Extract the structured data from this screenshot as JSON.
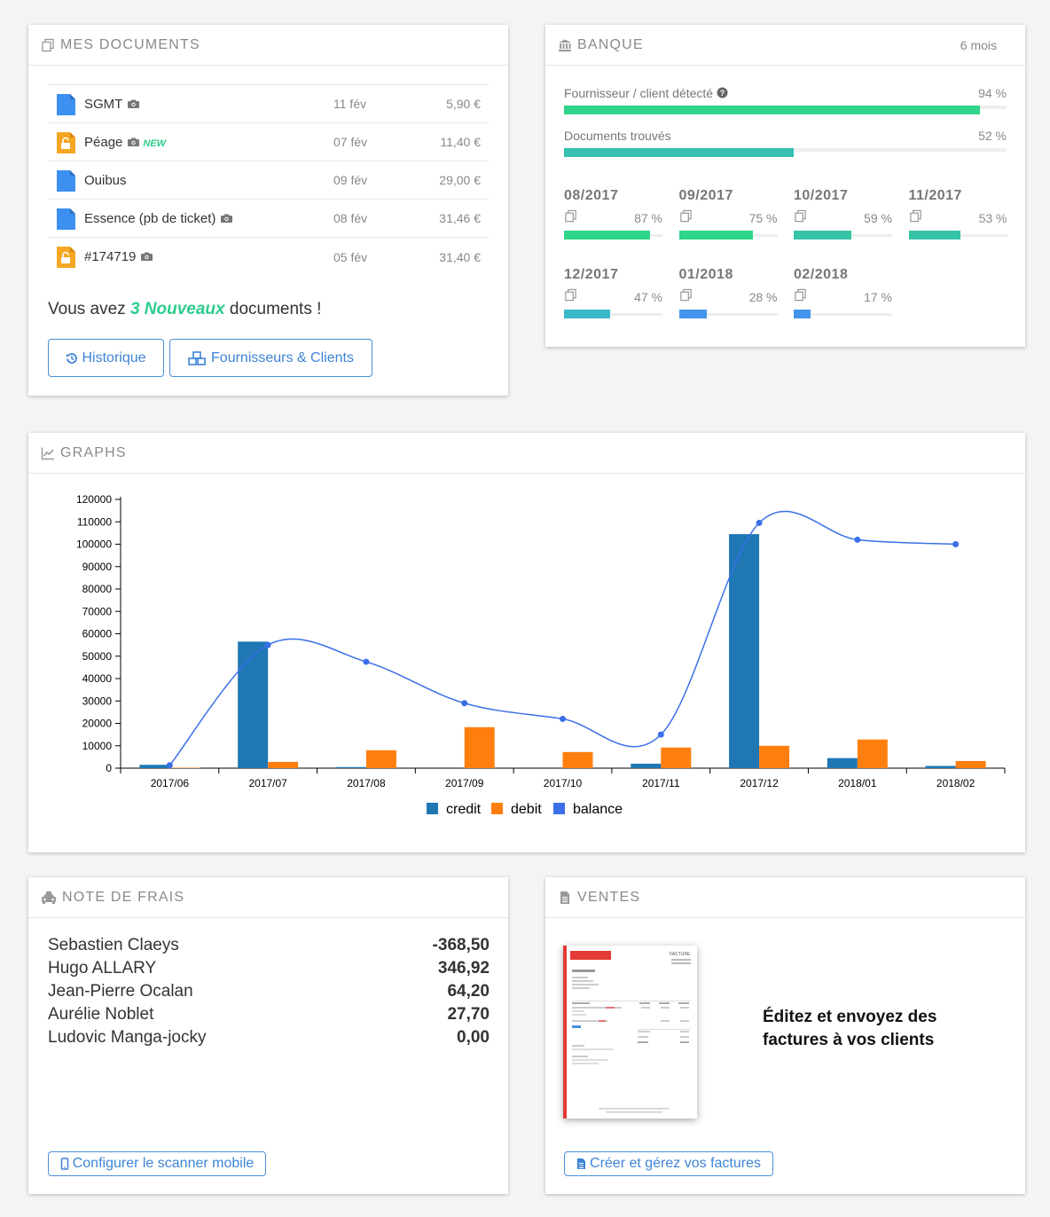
{
  "documents": {
    "title": "MES DOCUMENTS",
    "rows": [
      {
        "name": "SGMT",
        "date": "11 fév",
        "amount": "5,90 €",
        "type": "doc",
        "camera": true,
        "new": ""
      },
      {
        "name": "Péage",
        "date": "07 fév",
        "amount": "11,40 €",
        "type": "unlock",
        "camera": true,
        "new": "NEW"
      },
      {
        "name": "Ouibus",
        "date": "09 fév",
        "amount": "29,00 €",
        "type": "doc",
        "camera": false,
        "new": ""
      },
      {
        "name": "Essence (pb de ticket)",
        "date": "08 fév",
        "amount": "31,46 €",
        "type": "doc",
        "camera": true,
        "new": ""
      },
      {
        "name": "#174719",
        "date": "05 fév",
        "amount": "31,40 €",
        "type": "unlock",
        "camera": true,
        "new": ""
      }
    ],
    "message_pre": "Vous avez ",
    "message_highlight": "3 Nouveaux",
    "message_post": " documents !",
    "history_button": "Historique",
    "suppliers_button": "Fournisseurs & Clients"
  },
  "bank": {
    "title": "BANQUE",
    "period": "6 mois",
    "detected_label": "Fournisseur / client détecté",
    "detected_pct": "94 %",
    "detected_value": 94,
    "found_label": "Documents trouvés",
    "found_pct": "52 %",
    "found_value": 52,
    "months": [
      {
        "label": "08/2017",
        "pct": "87 %",
        "value": 87,
        "color": "#2ed58a"
      },
      {
        "label": "09/2017",
        "pct": "75 %",
        "value": 75,
        "color": "#2ed58a"
      },
      {
        "label": "10/2017",
        "pct": "59 %",
        "value": 59,
        "color": "#35c4a5"
      },
      {
        "label": "11/2017",
        "pct": "53 %",
        "value": 53,
        "color": "#35c4a5"
      },
      {
        "label": "12/2017",
        "pct": "47 %",
        "value": 47,
        "color": "#3ab9c8"
      },
      {
        "label": "01/2018",
        "pct": "28 %",
        "value": 28,
        "color": "#4394ea"
      },
      {
        "label": "02/2018",
        "pct": "17 %",
        "value": 17,
        "color": "#4394ea"
      }
    ],
    "colors": {
      "detected": "#2ed58a",
      "found": "#35c0b0"
    }
  },
  "graphs": {
    "title": "GRAPHS"
  },
  "chart_data": {
    "type": "bar",
    "categories": [
      "2017/06",
      "2017/07",
      "2017/08",
      "2017/09",
      "2017/10",
      "2017/11",
      "2017/12",
      "2018/01",
      "2018/02"
    ],
    "series": [
      {
        "name": "credit",
        "type": "bar",
        "color": "#1f77b4",
        "values": [
          1500,
          56500,
          500,
          0,
          0,
          2000,
          104500,
          4500,
          1000
        ]
      },
      {
        "name": "debit",
        "type": "bar",
        "color": "#ff7f0e",
        "values": [
          200,
          2800,
          8000,
          18300,
          7200,
          9200,
          10000,
          12800,
          3200
        ]
      },
      {
        "name": "balance",
        "type": "line",
        "color": "#3b6fe8",
        "values": [
          1300,
          55000,
          47500,
          29000,
          22000,
          15000,
          109500,
          102000,
          100000
        ]
      }
    ],
    "yticks": [
      0,
      10000,
      20000,
      30000,
      40000,
      50000,
      60000,
      70000,
      80000,
      90000,
      100000,
      110000,
      120000
    ],
    "ylim": [
      0,
      120000
    ],
    "legend": "bottom-center"
  },
  "notes": {
    "title": "NOTE DE FRAIS",
    "people": [
      {
        "name": "Sebastien Claeys",
        "amount": "-368,50"
      },
      {
        "name": "Hugo ALLARY",
        "amount": "346,92"
      },
      {
        "name": "Jean-Pierre Ocalan",
        "amount": "64,20"
      },
      {
        "name": "Aurélie Noblet",
        "amount": "27,70"
      },
      {
        "name": "Ludovic Manga-jocky",
        "amount": "0,00"
      }
    ],
    "scanner_button": "Configurer le scanner mobile"
  },
  "sales": {
    "title": "VENTES",
    "text": "Éditez et envoyez des factures à vos clients",
    "invoice_heading": "FACTURE",
    "create_button": "Créer et gérez vos factures"
  }
}
